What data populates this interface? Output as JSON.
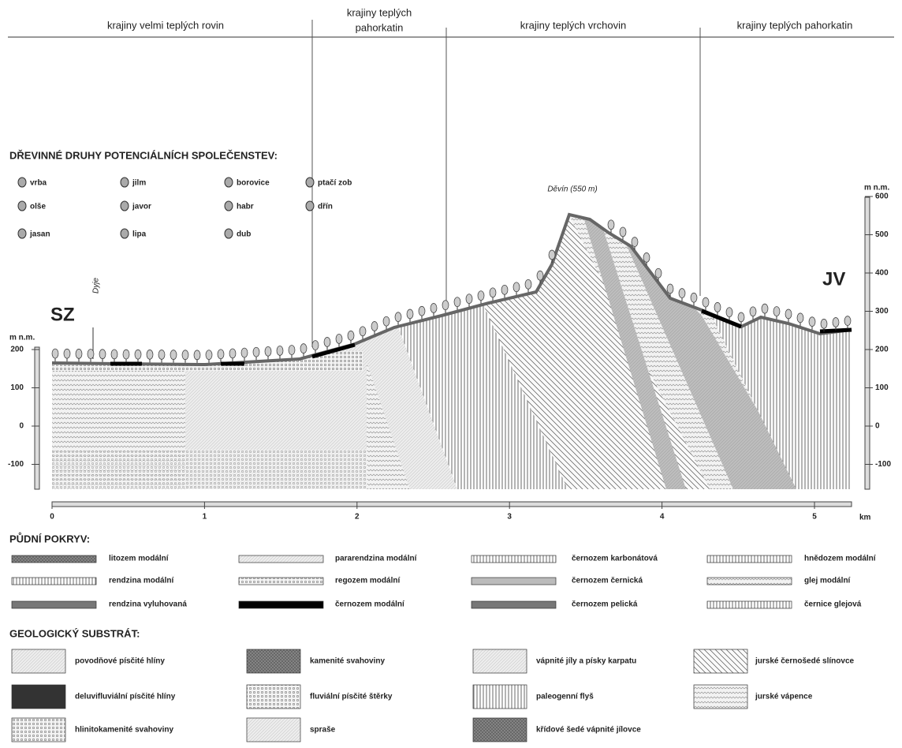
{
  "zones": [
    {
      "lines": [
        "krajiny velmi teplých rovin"
      ]
    },
    {
      "lines": [
        "krajiny teplých",
        "pahorkatin"
      ]
    },
    {
      "lines": [
        "krajiny teplých vrchovin"
      ]
    },
    {
      "lines": [
        "krajiny teplých pahorkatin"
      ]
    }
  ],
  "species": {
    "title": "DŘEVINNÉ DRUHY POTENCIÁLNÍCH SPOLEČENSTEV:",
    "items": [
      "vrba",
      "olše",
      "jasan",
      "jilm",
      "javor",
      "lipa",
      "borovice",
      "habr",
      "dub",
      "ptačí zob",
      "dřín"
    ]
  },
  "profile": {
    "peak": "Děvín (550 m)",
    "river": "Dyje",
    "left": "SZ",
    "right": "JV",
    "axis_unit": "m n.m.",
    "left_ticks": [
      200,
      100,
      0,
      -100
    ],
    "right_ticks": [
      600,
      500,
      400,
      300,
      200,
      100,
      0,
      -100
    ],
    "x_ticks": [
      0,
      1,
      2,
      3,
      4,
      5
    ],
    "x_unit": "km"
  },
  "soil": {
    "title": "PŮDNÍ POKRYV:",
    "items": [
      "litozem modální",
      "rendzina modální",
      "rendzina vyluhovaná",
      "pararendzina modální",
      "regozem modální",
      "černozem modální",
      "černozem karbonátová",
      "černozem černická",
      "černozem pelická",
      "hnědozem modální",
      "glej modální",
      "černice glejová"
    ]
  },
  "geology": {
    "title": "GEOLOGICKÝ SUBSTRÁT:",
    "items": [
      "povodňové písčité hlíny",
      "deluvifluviální písčité hlíny",
      "hlinitokamenité svahoviny",
      "kamenité svahoviny",
      "fluviální písčité štěrky",
      "spraše",
      "vápnité jíly a písky karpatu",
      "paleogenní flyš",
      "křídové šedé vápnité jílovce",
      "jurské černošedé slínovce",
      "jurské vápence"
    ]
  }
}
